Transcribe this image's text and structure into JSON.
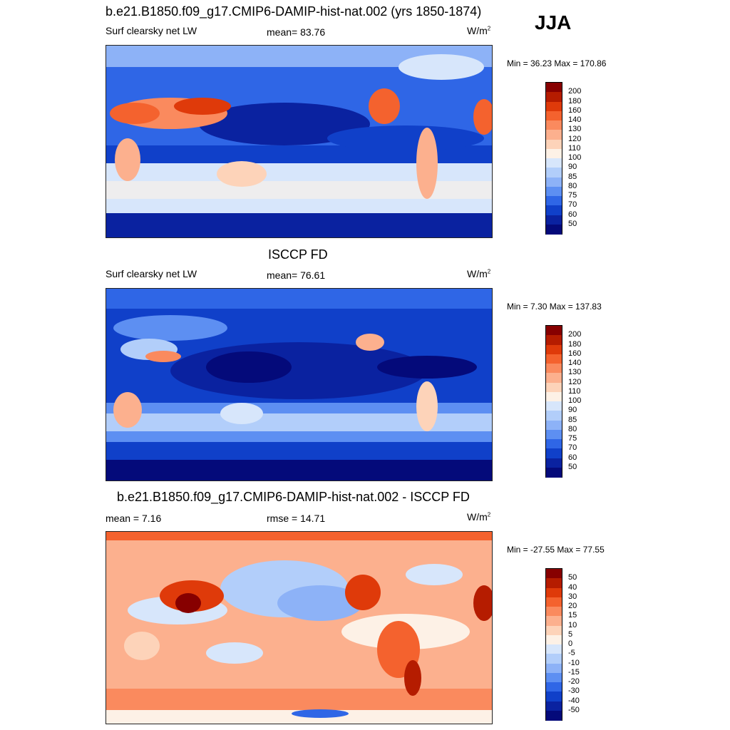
{
  "season": "JJA",
  "panels": [
    {
      "title": "b.e21.B1850.f09_g17.CMIP6-DAMIP-hist-nat.002 (yrs 1850-1874)",
      "left_label": "Surf clearsky net LW",
      "center_label": "mean=  83.76",
      "unit_base": "W/m",
      "unit_exp": "2",
      "minmax": "Min =  36.23 Max = 170.86",
      "levels": [
        "200",
        "180",
        "160",
        "140",
        "130",
        "120",
        "110",
        "100",
        "90",
        "85",
        "80",
        "75",
        "70",
        "60",
        "50"
      ],
      "colors": [
        "#870000",
        "#b51c00",
        "#df3a0a",
        "#f4622e",
        "#fa8a5e",
        "#fcb08e",
        "#fdd3b9",
        "#fdf1e6",
        "#d7e6fb",
        "#b2cefa",
        "#8db2f7",
        "#5d8ff2",
        "#2f66e6",
        "#1040c9",
        "#0a22a0",
        "#040a7a"
      ],
      "chart_data": {
        "type": "heatmap",
        "title": "b.e21.B1850.f09_g17.CMIP6-DAMIP-hist-nat.002 (yrs 1850-1874)",
        "variable": "Surf clearsky net LW",
        "unit": "W/m2",
        "mean": 83.76,
        "min": 36.23,
        "max": 170.86,
        "contour_levels": [
          50,
          60,
          70,
          75,
          80,
          85,
          90,
          100,
          110,
          120,
          130,
          140,
          160,
          180,
          200
        ]
      }
    },
    {
      "title": "ISCCP FD",
      "left_label": "Surf clearsky net LW",
      "center_label": "mean=  76.61",
      "unit_base": "W/m",
      "unit_exp": "2",
      "minmax": "Min =   7.30 Max = 137.83",
      "levels": [
        "200",
        "180",
        "160",
        "140",
        "130",
        "120",
        "110",
        "100",
        "90",
        "85",
        "80",
        "75",
        "70",
        "60",
        "50"
      ],
      "colors": [
        "#870000",
        "#b51c00",
        "#df3a0a",
        "#f4622e",
        "#fa8a5e",
        "#fcb08e",
        "#fdd3b9",
        "#fdf1e6",
        "#d7e6fb",
        "#b2cefa",
        "#8db2f7",
        "#5d8ff2",
        "#2f66e6",
        "#1040c9",
        "#0a22a0",
        "#040a7a"
      ],
      "chart_data": {
        "type": "heatmap",
        "title": "ISCCP FD",
        "variable": "Surf clearsky net LW",
        "unit": "W/m2",
        "mean": 76.61,
        "min": 7.3,
        "max": 137.83,
        "contour_levels": [
          50,
          60,
          70,
          75,
          80,
          85,
          90,
          100,
          110,
          120,
          130,
          140,
          160,
          180,
          200
        ]
      }
    },
    {
      "title": "b.e21.B1850.f09_g17.CMIP6-DAMIP-hist-nat.002 - ISCCP FD",
      "left_label": "mean =   7.16",
      "center_label": "rmse =  14.71",
      "unit_base": "W/m",
      "unit_exp": "2",
      "minmax": "Min = -27.55 Max =  77.55",
      "levels": [
        "50",
        "40",
        "30",
        "20",
        "15",
        "10",
        "5",
        "0",
        "-5",
        "-10",
        "-15",
        "-20",
        "-30",
        "-40",
        "-50"
      ],
      "colors": [
        "#870000",
        "#b51c00",
        "#df3a0a",
        "#f4622e",
        "#fa8a5e",
        "#fcb08e",
        "#fdd3b9",
        "#fdf1e6",
        "#d7e6fb",
        "#b2cefa",
        "#8db2f7",
        "#5d8ff2",
        "#2f66e6",
        "#1040c9",
        "#0a22a0",
        "#040a7a"
      ],
      "chart_data": {
        "type": "heatmap",
        "title": "b.e21.B1850.f09_g17.CMIP6-DAMIP-hist-nat.002 - ISCCP FD",
        "unit": "W/m2",
        "mean": 7.16,
        "rmse": 14.71,
        "min": -27.55,
        "max": 77.55,
        "contour_levels": [
          -50,
          -40,
          -30,
          -20,
          -15,
          -10,
          -5,
          0,
          5,
          10,
          15,
          20,
          30,
          40,
          50
        ]
      }
    }
  ]
}
